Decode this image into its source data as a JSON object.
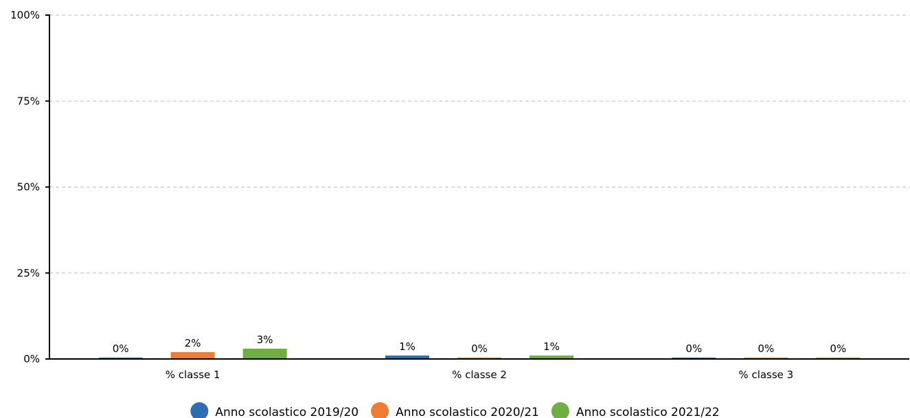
{
  "chart_data": {
    "type": "bar",
    "title": "",
    "xlabel": "",
    "ylabel": "",
    "ylim": [
      0,
      100
    ],
    "yticks": [
      "0%",
      "25%",
      "50%",
      "75%",
      "100%"
    ],
    "ytick_values": [
      0,
      25,
      50,
      75,
      100
    ],
    "grid": true,
    "legend_position": "bottom-center",
    "categories": [
      "% classe 1",
      "% classe 2",
      "% classe 3"
    ],
    "series": [
      {
        "name": "Anno scolastico 2019/20",
        "color": "#2f6db5",
        "values": [
          0,
          1,
          0
        ],
        "labels": [
          "0%",
          "1%",
          "0%"
        ]
      },
      {
        "name": "Anno scolastico 2020/21",
        "color": "#ee7d31",
        "values": [
          2,
          0,
          0
        ],
        "labels": [
          "2%",
          "0%",
          "0%"
        ]
      },
      {
        "name": "Anno scolastico 2021/22",
        "color": "#6eae45",
        "values": [
          3,
          1,
          0
        ],
        "labels": [
          "3%",
          "1%",
          "0%"
        ]
      }
    ]
  }
}
